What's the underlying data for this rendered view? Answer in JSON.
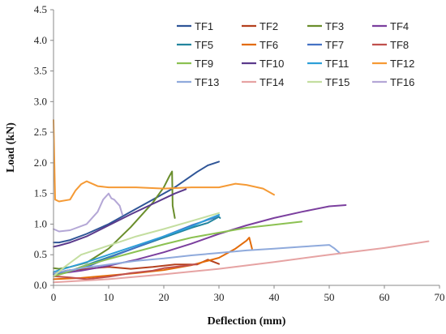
{
  "chart_data": {
    "type": "line",
    "xlabel": "Deflection (mm)",
    "ylabel": "Load (kN)",
    "xlim": [
      0,
      70
    ],
    "ylim": [
      0,
      4.5
    ],
    "xticks": [
      0,
      10,
      20,
      30,
      40,
      50,
      60,
      70
    ],
    "yticks": [
      0.0,
      0.5,
      1.0,
      1.5,
      2.0,
      2.5,
      3.0,
      3.5,
      4.0,
      4.5
    ],
    "ytick_labels": [
      "0.0",
      "0.5",
      "1.0",
      "1.5",
      "2.0",
      "2.5",
      "3.0",
      "3.5",
      "4.0",
      "4.5"
    ],
    "grid": false,
    "legend_position": "top-right",
    "legend_columns": 4,
    "series": [
      {
        "name": "TF1",
        "color": "#2f5597",
        "x": [
          0,
          1,
          3,
          6,
          10,
          14,
          18,
          22,
          26,
          28,
          30
        ],
        "y": [
          0.7,
          0.7,
          0.74,
          0.84,
          1.0,
          1.2,
          1.4,
          1.6,
          1.85,
          1.96,
          2.02
        ]
      },
      {
        "name": "TF2",
        "color": "#b5401e",
        "x": [
          0,
          3,
          6,
          10,
          14,
          18,
          22,
          26,
          28,
          30
        ],
        "y": [
          0.2,
          0.25,
          0.27,
          0.3,
          0.27,
          0.3,
          0.34,
          0.34,
          0.42,
          0.35
        ]
      },
      {
        "name": "TF3",
        "color": "#6a8e2c",
        "x": [
          0,
          1,
          3,
          6,
          10,
          14,
          18,
          20,
          21,
          21.5,
          21.6,
          22
        ],
        "y": [
          0.28,
          0.27,
          0.3,
          0.37,
          0.6,
          0.95,
          1.35,
          1.6,
          1.78,
          1.86,
          1.3,
          1.1
        ]
      },
      {
        "name": "TF4",
        "color": "#7b3f9e",
        "x": [
          0,
          5,
          10,
          15,
          20,
          25,
          30,
          35,
          40,
          45,
          50,
          53
        ],
        "y": [
          0.18,
          0.24,
          0.32,
          0.42,
          0.54,
          0.68,
          0.84,
          0.98,
          1.1,
          1.2,
          1.29,
          1.31
        ]
      },
      {
        "name": "TF5",
        "color": "#23859e",
        "x": [
          0,
          2,
          5,
          10,
          15,
          20,
          25,
          28,
          30,
          30.2
        ],
        "y": [
          0.2,
          0.2,
          0.3,
          0.46,
          0.62,
          0.78,
          0.94,
          1.02,
          1.12,
          1.1
        ]
      },
      {
        "name": "TF6",
        "color": "#e36c0a",
        "x": [
          0,
          5,
          10,
          15,
          20,
          25,
          30,
          33,
          35,
          35.5,
          36
        ],
        "y": [
          0.1,
          0.12,
          0.16,
          0.2,
          0.25,
          0.33,
          0.45,
          0.6,
          0.73,
          0.78,
          0.6
        ]
      },
      {
        "name": "TF7",
        "color": "#4472c4",
        "x": [
          0,
          3,
          6,
          10,
          15,
          20,
          25,
          29,
          30
        ],
        "y": [
          0.18,
          0.24,
          0.3,
          0.45,
          0.62,
          0.8,
          0.98,
          1.1,
          1.15
        ]
      },
      {
        "name": "TF8",
        "color": "#c0504d",
        "x": [
          0,
          3,
          6,
          10,
          14,
          18,
          20,
          22,
          24,
          26
        ],
        "y": [
          0.15,
          0.13,
          0.1,
          0.14,
          0.2,
          0.24,
          0.28,
          0.3,
          0.32,
          0.35
        ]
      },
      {
        "name": "TF9",
        "color": "#8cc152",
        "x": [
          0,
          2,
          5,
          10,
          15,
          20,
          25,
          30,
          35,
          40,
          45
        ],
        "y": [
          0.15,
          0.2,
          0.3,
          0.43,
          0.55,
          0.67,
          0.78,
          0.86,
          0.94,
          0.99,
          1.04
        ]
      },
      {
        "name": "TF10",
        "color": "#5b3a8c",
        "x": [
          0,
          1,
          3,
          6,
          10,
          14,
          18,
          22,
          24
        ],
        "y": [
          0.63,
          0.65,
          0.7,
          0.8,
          0.98,
          1.16,
          1.33,
          1.5,
          1.57
        ]
      },
      {
        "name": "TF11",
        "color": "#2e9fd8",
        "x": [
          0,
          3,
          6,
          10,
          15,
          20,
          25,
          28,
          30
        ],
        "y": [
          0.22,
          0.3,
          0.38,
          0.5,
          0.65,
          0.8,
          0.96,
          1.08,
          1.15
        ]
      },
      {
        "name": "TF12",
        "color": "#f59a35",
        "x": [
          0,
          0.3,
          1,
          3,
          4,
          5,
          6,
          8,
          10,
          15,
          20,
          25,
          30,
          33,
          35,
          38,
          40
        ],
        "y": [
          2.7,
          1.4,
          1.37,
          1.4,
          1.55,
          1.65,
          1.7,
          1.62,
          1.6,
          1.6,
          1.58,
          1.6,
          1.6,
          1.66,
          1.64,
          1.58,
          1.48
        ]
      },
      {
        "name": "TF13",
        "color": "#8faadc",
        "x": [
          0,
          5,
          10,
          15,
          20,
          25,
          30,
          35,
          40,
          45,
          50,
          51,
          52
        ],
        "y": [
          0.2,
          0.28,
          0.34,
          0.4,
          0.44,
          0.49,
          0.53,
          0.57,
          0.6,
          0.63,
          0.66,
          0.6,
          0.52
        ]
      },
      {
        "name": "TF14",
        "color": "#e6a3a3",
        "x": [
          0,
          10,
          20,
          30,
          40,
          50,
          60,
          68
        ],
        "y": [
          0.05,
          0.1,
          0.18,
          0.27,
          0.38,
          0.5,
          0.61,
          0.72
        ]
      },
      {
        "name": "TF15",
        "color": "#c4dea0",
        "x": [
          0,
          2,
          5,
          10,
          15,
          20,
          25,
          30
        ],
        "y": [
          0.15,
          0.3,
          0.5,
          0.65,
          0.8,
          0.92,
          1.05,
          1.18
        ]
      },
      {
        "name": "TF16",
        "color": "#b4a7d6",
        "x": [
          0,
          1,
          3,
          6,
          8,
          9,
          10,
          10.5,
          11,
          12,
          12.5
        ],
        "y": [
          0.92,
          0.88,
          0.9,
          1.0,
          1.2,
          1.4,
          1.5,
          1.42,
          1.4,
          1.3,
          1.15
        ]
      }
    ]
  }
}
